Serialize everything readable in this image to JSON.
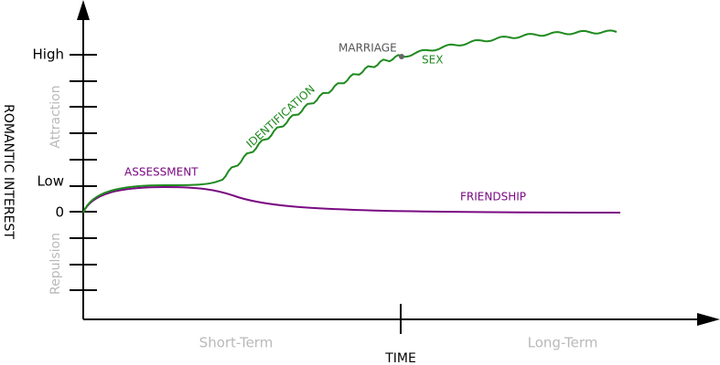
{
  "axes": {
    "y_label": "ROMANTIC INTEREST",
    "x_label": "TIME",
    "y_ticks": {
      "high": "High",
      "low": "Low",
      "zero": "0"
    },
    "y_regions": {
      "attraction": "Attraction",
      "repulsion": "Repulsion"
    },
    "x_regions": {
      "short_term": "Short-Term",
      "long_term": "Long-Term"
    }
  },
  "curves": {
    "green": {
      "color": "#1f8a1f"
    },
    "purple": {
      "color": "#7a0a82"
    }
  },
  "labels": {
    "assessment": "ASSESSMENT",
    "identification": "IDENTIFICATION",
    "marriage": "MARRIAGE",
    "sex": "SEX",
    "friendship": "FRIENDSHIP"
  },
  "colors": {
    "axis": "#000000",
    "muted_text": "#b9b9b9",
    "marker": "#666666"
  }
}
